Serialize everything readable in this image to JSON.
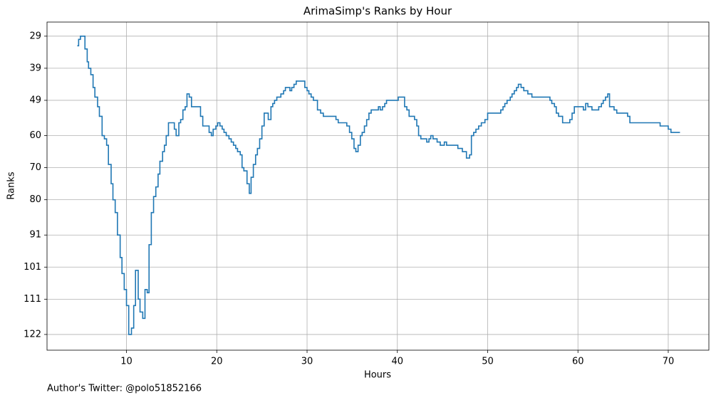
{
  "chart_data": {
    "type": "line",
    "step": true,
    "title": "ArimaSimp's Ranks by Hour",
    "xlabel": "Hours",
    "ylabel": "Ranks",
    "footnote": "Author's Twitter: @polo51852166",
    "x": [
      4.55,
      4.7,
      4.9,
      5.4,
      5.65,
      5.8,
      6.05,
      6.3,
      6.5,
      6.8,
      7.0,
      7.3,
      7.55,
      7.8,
      8.0,
      8.3,
      8.5,
      8.75,
      9.0,
      9.3,
      9.5,
      9.75,
      10.0,
      10.25,
      10.55,
      10.8,
      11.0,
      11.3,
      11.5,
      11.8,
      12.05,
      12.3,
      12.5,
      12.75,
      13.0,
      13.25,
      13.5,
      13.7,
      14.0,
      14.2,
      14.4,
      14.65,
      15.3,
      15.5,
      15.8,
      16.0,
      16.25,
      16.5,
      16.7,
      16.95,
      17.2,
      18.2,
      18.45,
      19.15,
      19.4,
      19.6,
      19.9,
      20.1,
      20.35,
      20.6,
      20.8,
      21.05,
      21.35,
      21.6,
      21.85,
      22.1,
      22.3,
      22.6,
      22.8,
      23.0,
      23.35,
      23.6,
      23.8,
      24.05,
      24.3,
      24.5,
      24.75,
      25.0,
      25.25,
      25.7,
      26.0,
      26.2,
      26.4,
      26.65,
      27.1,
      27.4,
      27.6,
      28.1,
      28.3,
      28.55,
      28.8,
      29.75,
      30.0,
      30.2,
      30.45,
      30.7,
      31.15,
      31.5,
      31.8,
      33.2,
      33.45,
      34.4,
      34.7,
      34.95,
      35.2,
      35.4,
      35.65,
      35.9,
      36.1,
      36.35,
      36.6,
      36.85,
      37.1,
      37.9,
      38.1,
      38.35,
      38.6,
      38.8,
      40.1,
      40.8,
      41.05,
      41.3,
      41.9,
      42.15,
      42.35,
      42.6,
      43.25,
      43.5,
      43.7,
      43.95,
      44.4,
      44.75,
      45.2,
      45.45,
      46.7,
      47.2,
      47.65,
      48.0,
      48.2,
      48.45,
      48.7,
      49.0,
      49.3,
      49.7,
      50.0,
      51.45,
      51.7,
      51.9,
      52.15,
      52.5,
      52.7,
      52.95,
      53.2,
      53.4,
      53.7,
      54.0,
      54.45,
      54.9,
      56.9,
      57.1,
      57.4,
      57.6,
      57.85,
      58.3,
      59.1,
      59.35,
      59.6,
      60.6,
      60.85,
      61.1,
      61.55,
      62.3,
      62.6,
      62.8,
      63.05,
      63.3,
      63.5,
      64.0,
      64.3,
      65.5,
      65.75,
      69.1,
      70.0,
      70.3,
      71.3
    ],
    "series": [
      {
        "color": "#1f77b4",
        "values": [
          32,
          30,
          29,
          33,
          37,
          39,
          41,
          45,
          48,
          51,
          54,
          60,
          61,
          63,
          69,
          75,
          80,
          84,
          91,
          98,
          103,
          108,
          113,
          122,
          120,
          113,
          102,
          111,
          115,
          117,
          108,
          109,
          94,
          84,
          79,
          76,
          72,
          68,
          65,
          63,
          60,
          56,
          58,
          60,
          56,
          55,
          52,
          51,
          47,
          48,
          51,
          54,
          57,
          59,
          60,
          58,
          57,
          56,
          57,
          58,
          59,
          60,
          61,
          62,
          63,
          64,
          65,
          66,
          70,
          71,
          75,
          78,
          73,
          69,
          66,
          64,
          61,
          57,
          53,
          55,
          51,
          50,
          49,
          48,
          47,
          46,
          45,
          46,
          45,
          44,
          43,
          45,
          46,
          47,
          48,
          49,
          52,
          53,
          54,
          55,
          56,
          57,
          59,
          61,
          64,
          65,
          63,
          60,
          59,
          57,
          55,
          53,
          52,
          51,
          52,
          51,
          50,
          49,
          48,
          51,
          52,
          54,
          55,
          57,
          60,
          61,
          62,
          61,
          60,
          61,
          62,
          63,
          62,
          63,
          64,
          65,
          67,
          66,
          60,
          59,
          58,
          57,
          56,
          55,
          53,
          52,
          51,
          50,
          49,
          48,
          47,
          46,
          45,
          44,
          45,
          46,
          47,
          48,
          49,
          50,
          51,
          53,
          54,
          56,
          55,
          53,
          51,
          52,
          50,
          51,
          52,
          51,
          50,
          49,
          48,
          47,
          51,
          52,
          53,
          54,
          56,
          57,
          58,
          59,
          59
        ]
      }
    ],
    "xlim": [
      1.2,
      74.5
    ],
    "xticks": [
      10,
      20,
      30,
      40,
      50,
      60,
      70
    ],
    "ylim": [
      126.9,
      24.6
    ],
    "yticks": [
      29,
      39,
      49,
      60,
      70,
      80,
      91,
      101,
      111,
      122
    ],
    "grid": true
  }
}
